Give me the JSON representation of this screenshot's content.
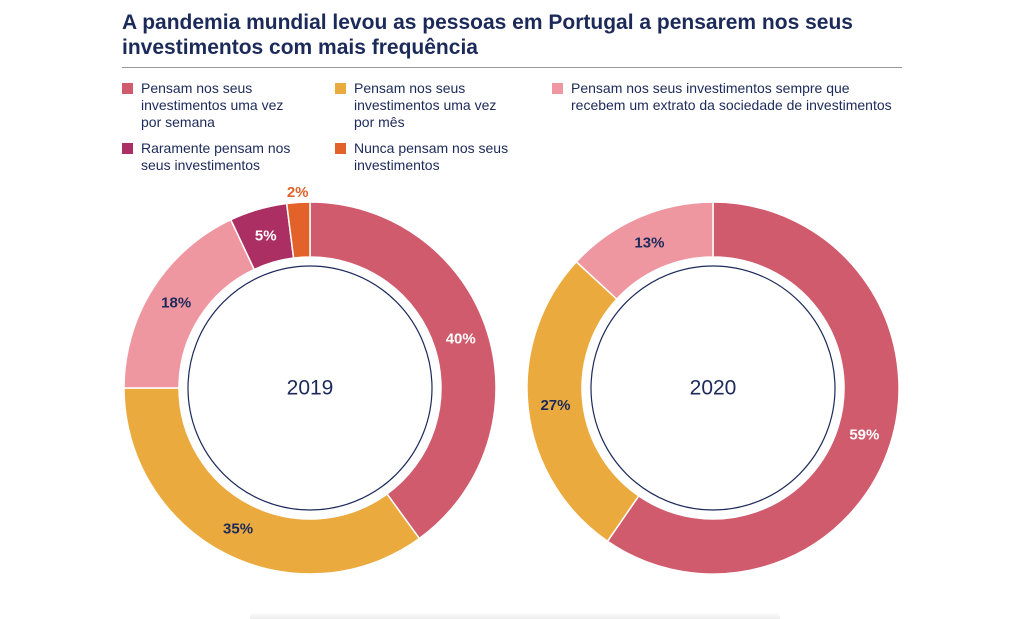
{
  "title": "A pandemia mundial levou as pessoas em Portugal a pensarem nos seus investimentos com mais frequência",
  "legend": [
    {
      "label": "Pensam nos seus investimentos uma vez por semana",
      "color": "#cf5b6c"
    },
    {
      "label": "Pensam nos seus investimentos uma vez por mês",
      "color": "#ebaa3e"
    },
    {
      "label": "Pensam nos seus investimentos sempre que recebem um extrato da sociedade de investimentos",
      "color": "#ef97a1"
    },
    {
      "label": "Raramente pensam nos seus investimentos",
      "color": "#ac2f63"
    },
    {
      "label": "Nunca pensam nos seus investimentos",
      "color": "#e2622a"
    }
  ],
  "chart_data": [
    {
      "type": "pie",
      "center_label": "2019",
      "slices": [
        {
          "category": "Pensam nos seus investimentos uma vez por semana",
          "value": 40,
          "label": "40%",
          "color": "#cf5b6c",
          "label_color": "#ffffff"
        },
        {
          "category": "Pensam nos seus investimentos uma vez por mês",
          "value": 35,
          "label": "35%",
          "color": "#ebaa3e",
          "label_color": "#1c2a5a"
        },
        {
          "category": "Pensam nos seus investimentos sempre que recebem um extrato da sociedade de investimentos",
          "value": 18,
          "label": "18%",
          "color": "#ef97a1",
          "label_color": "#1c2a5a"
        },
        {
          "category": "Raramente pensam nos seus investimentos",
          "value": 5,
          "label": "5%",
          "color": "#ac2f63",
          "label_color": "#ffffff"
        },
        {
          "category": "Nunca pensam nos seus investimentos",
          "value": 2,
          "label": "2%",
          "color": "#e2622a",
          "label_color": "#e2622a"
        }
      ]
    },
    {
      "type": "pie",
      "center_label": "2020",
      "slices": [
        {
          "category": "Pensam nos seus investimentos uma vez por semana",
          "value": 59,
          "label": "59%",
          "color": "#cf5b6c",
          "label_color": "#ffffff"
        },
        {
          "category": "Pensam nos seus investimentos uma vez por mês",
          "value": 27,
          "label": "27%",
          "color": "#ebaa3e",
          "label_color": "#1c2a5a"
        },
        {
          "category": "Pensam nos seus investimentos sempre que recebem um extrato da sociedade de investimentos",
          "value": 13,
          "label": "13%",
          "color": "#ef97a1",
          "label_color": "#1c2a5a"
        }
      ]
    }
  ]
}
